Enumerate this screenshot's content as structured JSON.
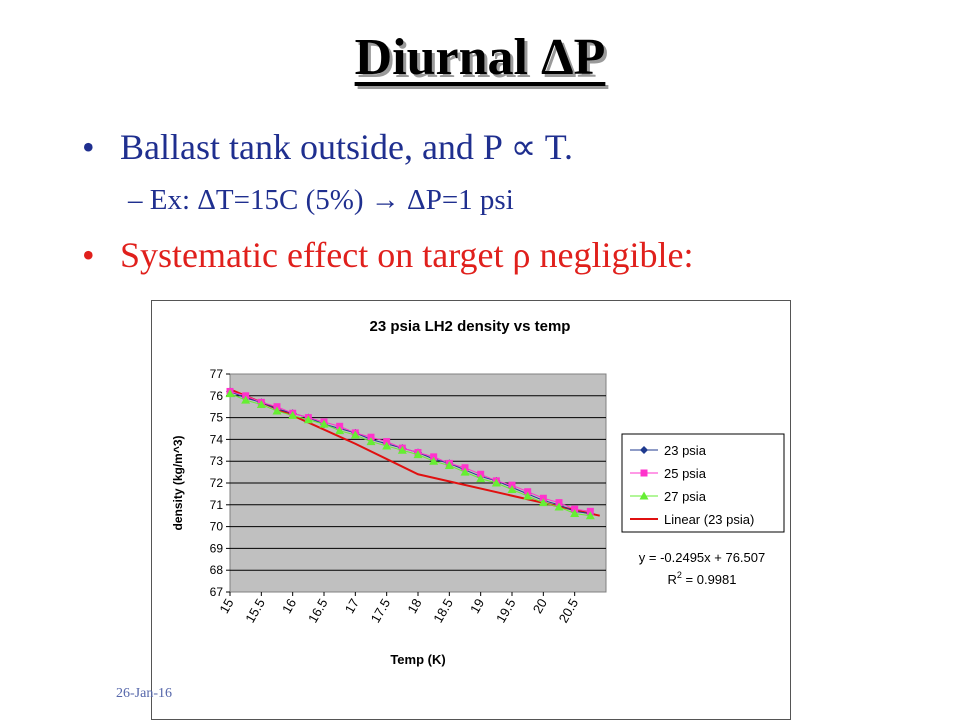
{
  "slide": {
    "title": "Diurnal ΔP",
    "bullet1": "Ballast tank outside, and P ∝ T.",
    "sub1": "– Ex: ΔT=15C (5%) → ΔP=1 psi",
    "bullet2": "Systematic effect on target ρ negligible:",
    "bullet_glyph": "•",
    "footer_date": "26-Jan-16"
  },
  "chart_data": {
    "type": "scatter",
    "title": "23 psia LH2 density vs temp",
    "xlabel": "Temp (K)",
    "ylabel": "density (kg/m^3)",
    "xlim": [
      15,
      21
    ],
    "ylim": [
      67,
      77
    ],
    "x_ticks": [
      "15",
      "15.5",
      "16",
      "16.5",
      "17",
      "17.5",
      "18",
      "18.5",
      "19",
      "19.5",
      "20",
      "20.5"
    ],
    "y_ticks": [
      "67",
      "68",
      "69",
      "70",
      "71",
      "72",
      "73",
      "74",
      "75",
      "76",
      "77"
    ],
    "x": [
      15.0,
      15.25,
      15.5,
      15.75,
      16.0,
      16.25,
      16.5,
      16.75,
      17.0,
      17.25,
      17.5,
      17.75,
      18.0,
      18.25,
      18.5,
      18.75,
      19.0,
      19.25,
      19.5,
      19.75,
      20.0,
      20.25,
      20.5,
      20.75
    ],
    "series": [
      {
        "name": "23 psia",
        "marker": "diamond",
        "color": "#1f3a8f",
        "values": [
          76.2,
          75.9,
          75.7,
          75.4,
          75.2,
          75.0,
          74.7,
          74.5,
          74.3,
          74.0,
          73.8,
          73.6,
          73.4,
          73.1,
          72.9,
          72.6,
          72.3,
          72.1,
          71.8,
          71.5,
          71.2,
          71.0,
          70.7,
          70.6
        ]
      },
      {
        "name": "25 psia",
        "marker": "square",
        "color": "#ff33cc",
        "values": [
          76.2,
          76.0,
          75.7,
          75.5,
          75.2,
          75.0,
          74.8,
          74.6,
          74.3,
          74.1,
          73.9,
          73.6,
          73.4,
          73.2,
          72.9,
          72.7,
          72.4,
          72.1,
          71.9,
          71.6,
          71.3,
          71.1,
          70.8,
          70.7
        ]
      },
      {
        "name": "27 psia",
        "marker": "triangle",
        "color": "#66ee33",
        "values": [
          76.1,
          75.8,
          75.6,
          75.3,
          75.1,
          74.9,
          74.7,
          74.4,
          74.2,
          73.9,
          73.7,
          73.5,
          73.3,
          73.0,
          72.8,
          72.5,
          72.2,
          72.0,
          71.7,
          71.4,
          71.1,
          70.9,
          70.6,
          70.5
        ]
      },
      {
        "name": "Linear (23 psia)",
        "marker": "line",
        "color": "#e01010",
        "values": [
          76.3,
          75.1,
          73.8,
          72.4,
          70.5
        ]
      }
    ],
    "trend_x": [
      15.0,
      16.0,
      17.0,
      18.0,
      20.9
    ],
    "equation": "y = -0.2495x + 76.507",
    "r2_label": "R",
    "r2_exp": "2",
    "r2_value": " = 0.9981",
    "grid": true,
    "plot_bg": "#c0c0c0",
    "legend_position": "right"
  }
}
